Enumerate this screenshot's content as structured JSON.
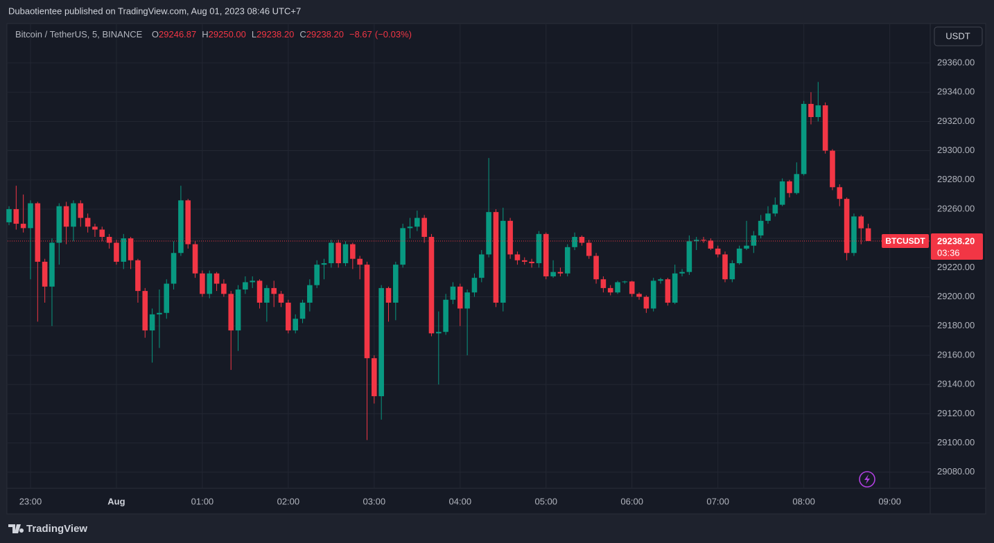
{
  "header": "Dubaotientee published on TradingView.com, Aug 01, 2023 08:46 UTC+7",
  "footer": "TradingView",
  "chart_data": {
    "type": "candlestick",
    "title": "Bitcoin / TetherUS, 5, BINANCE",
    "legend": [
      {
        "key": "O",
        "value": 29246.87,
        "label": "29246.87"
      },
      {
        "key": "H",
        "value": 29250,
        "label": "29250.00"
      },
      {
        "key": "L",
        "value": 29238.2,
        "label": "29238.20"
      },
      {
        "key": "C",
        "value": 29238.2,
        "label": "29238.20"
      }
    ],
    "change": {
      "value": -8.67,
      "label": "−8.67"
    },
    "change_percent": {
      "value": -0.03,
      "label": "(−0.03%)"
    },
    "currency": "USDT",
    "symbol": "BTCUSDT",
    "last_price": {
      "value": 29238.2,
      "label": "29238.20"
    },
    "countdown": "03:36",
    "up_color": "#089981",
    "down_color": "#f23645",
    "grid": true,
    "categories": [
      null,
      null,
      null,
      "23:00",
      null,
      null,
      null,
      null,
      null,
      null,
      null,
      null,
      null,
      null,
      null,
      "Aug",
      null,
      null,
      null,
      null,
      null,
      null,
      null,
      null,
      null,
      null,
      null,
      "01:00",
      null,
      null,
      null,
      null,
      null,
      null,
      null,
      null,
      null,
      null,
      null,
      "02:00",
      null,
      null,
      null,
      null,
      null,
      null,
      null,
      null,
      null,
      null,
      null,
      "03:00",
      null,
      null,
      null,
      null,
      null,
      null,
      null,
      null,
      null,
      null,
      null,
      "04:00",
      null,
      null,
      null,
      null,
      null,
      null,
      null,
      null,
      null,
      null,
      null,
      "05:00",
      null,
      null,
      null,
      null,
      null,
      null,
      null,
      null,
      null,
      null,
      null,
      "06:00",
      null,
      null,
      null,
      null,
      null,
      null,
      null,
      null,
      null,
      null,
      null,
      "07:00",
      null,
      null,
      null,
      null,
      null,
      null,
      null,
      null,
      null,
      null,
      null,
      "08:00",
      null,
      null,
      null,
      null,
      null,
      null,
      null,
      null,
      null,
      null,
      null,
      "09:00"
    ],
    "open": [
      29251,
      29260,
      29250,
      29247,
      29264,
      29224,
      29207,
      29237,
      29262,
      29248,
      29264,
      29254,
      29248,
      29246,
      29241,
      29237,
      29224,
      29240,
      29225,
      29204,
      29177,
      29188,
      29189,
      29209,
      29230,
      29266,
      29236,
      29216,
      29202,
      29216,
      29209,
      29202,
      29177,
      29205,
      29210,
      29211,
      29196,
      29206,
      29202,
      29196,
      29177,
      29185,
      29196,
      29208,
      29222,
      29223,
      29237,
      29223,
      29236,
      29226,
      29222,
      29158,
      29132,
      29206,
      29196,
      29222,
      29247,
      29248,
      29254,
      29241,
      29175,
      29176,
      29198,
      29207,
      29192,
      29203,
      29213,
      29229,
      29258,
      29196,
      29252,
      29229,
      29225,
      29224,
      29223,
      29243,
      29214,
      29217,
      29216,
      29234,
      29241,
      29237,
      29228,
      29212,
      29206,
      29203,
      29210,
      29210.5,
      29202,
      29200,
      29192,
      29211,
      29212,
      29196,
      29216,
      29217,
      29238,
      29239,
      29238.5,
      29233,
      29229,
      29212,
      29223,
      29233,
      29235,
      29242,
      29252,
      29257,
      29263,
      29279,
      29271,
      29284,
      29332,
      29323,
      29331,
      29300,
      29275,
      29267,
      29230,
      29255,
      29246.87,
      null,
      null,
      null
    ],
    "high": [
      29262,
      29276,
      29270,
      29266,
      29265,
      29226,
      29240,
      29264,
      29265,
      29266,
      29266,
      29257,
      29250,
      29248,
      29243,
      29239,
      29243,
      29241,
      29226,
      29206,
      29192,
      29205,
      29212,
      29238,
      29276,
      29267,
      29238,
      29218,
      29218,
      29217,
      29212,
      29204,
      29208,
      29214,
      29214,
      29212,
      29208,
      29211,
      29204,
      29198,
      29188,
      29198,
      29212,
      29225,
      29226,
      29239,
      29239,
      29238,
      29237,
      29228,
      29224,
      29160,
      29208,
      29207,
      29224,
      29250,
      29254,
      29259,
      29256,
      29243,
      29190,
      29202,
      29210,
      29209,
      29205,
      29216,
      29232,
      29295,
      29260,
      29261,
      29254,
      29231,
      29227,
      29226,
      29245,
      29244,
      29225,
      29220,
      29236,
      29244,
      29242,
      29239,
      29230,
      29214,
      29208,
      29211,
      29211,
      29211,
      29203,
      29201,
      29213,
      29213,
      29213,
      29222,
      29219,
      29242,
      29241,
      29241,
      29240,
      29235,
      29231,
      29225,
      29235,
      29252,
      29245,
      29256,
      29262,
      29268,
      29281,
      29280,
      29292,
      29334,
      29340,
      29347,
      29333,
      29301,
      29277,
      29268,
      29257,
      29256,
      29250,
      null,
      null,
      null
    ],
    "low": [
      29249,
      29246,
      29244,
      29212,
      29183,
      29196,
      29180,
      29222,
      29236,
      29238,
      29248,
      29244,
      29241,
      29238,
      29233,
      29222,
      29219,
      29219,
      29196,
      29172,
      29155,
      29165,
      29185,
      29205,
      29228,
      29233,
      29213,
      29200,
      29199,
      29204,
      29200,
      29150,
      29163,
      29202,
      29206,
      29192,
      29183,
      29193,
      29193,
      29175,
      29175,
      29182,
      29190,
      29206,
      29212,
      29220,
      29220,
      29221,
      29219,
      29212,
      29102,
      29127,
      29116,
      29183,
      29184,
      29220,
      29240,
      29245,
      29237,
      29173,
      29140,
      29174,
      29195,
      29180,
      29160,
      29200,
      29210,
      29227,
      29193,
      29190,
      29226,
      29222,
      29222,
      29220,
      29220,
      29212,
      29213,
      29214,
      29214,
      29232,
      29235,
      29226,
      29209,
      29203,
      29201,
      29202,
      29209,
      29200,
      29198,
      29189,
      29190,
      29209,
      29194,
      29195,
      29214,
      29215,
      29232,
      29237,
      29232,
      29227,
      29210,
      29210,
      29222,
      29232,
      29230,
      29240,
      29250,
      29255,
      29262,
      29268,
      29270,
      29283,
      29318,
      29320,
      29298,
      29273,
      29262,
      29225,
      29228,
      29236,
      29238.2,
      null,
      null,
      null
    ],
    "close": [
      29260,
      29250,
      29247,
      29264,
      29224,
      29207,
      29237,
      29262,
      29248,
      29264,
      29254,
      29248,
      29246,
      29241,
      29237,
      29224,
      29240,
      29225,
      29204,
      29177,
      29188,
      29189,
      29209,
      29230,
      29266,
      29236,
      29216,
      29202,
      29216,
      29209,
      29202,
      29177,
      29205,
      29210,
      29211,
      29196,
      29206,
      29202,
      29196,
      29177,
      29185,
      29196,
      29208,
      29222,
      29223,
      29237,
      29223,
      29236,
      29226,
      29222,
      29158,
      29132,
      29206,
      29196,
      29222,
      29247,
      29248,
      29254,
      29241,
      29175,
      29176,
      29198,
      29207,
      29192,
      29203,
      29213,
      29229,
      29258,
      29196,
      29252,
      29229,
      29225,
      29224,
      29223,
      29243,
      29214,
      29217,
      29216,
      29234,
      29241,
      29237,
      29228,
      29212,
      29206,
      29203,
      29210,
      29210.5,
      29202,
      29200,
      29192,
      29211,
      29212,
      29196,
      29216,
      29217,
      29238,
      29239,
      29238.5,
      29233,
      29229,
      29212,
      29223,
      29233,
      29235,
      29242,
      29252,
      29257,
      29263,
      29279,
      29271,
      29284,
      29332,
      29323,
      29331,
      29300,
      29275,
      29267,
      29230,
      29255,
      29246.87,
      29238.2,
      null,
      null,
      null
    ],
    "ylim": [
      29069,
      29386.5
    ],
    "yticks": [
      {
        "value": 29080,
        "label": "29080.00"
      },
      {
        "value": 29100,
        "label": "29100.00"
      },
      {
        "value": 29120,
        "label": "29120.00"
      },
      {
        "value": 29140,
        "label": "29140.00"
      },
      {
        "value": 29160,
        "label": "29160.00"
      },
      {
        "value": 29180,
        "label": "29180.00"
      },
      {
        "value": 29200,
        "label": "29200.00"
      },
      {
        "value": 29220,
        "label": "29220.00"
      },
      {
        "value": 29240,
        "label": "29240.00"
      },
      {
        "value": 29260,
        "label": "29260.00"
      },
      {
        "value": 29280,
        "label": "29280.00"
      },
      {
        "value": 29300,
        "label": "29300.00"
      },
      {
        "value": 29320,
        "label": "29320.00"
      },
      {
        "value": 29340,
        "label": "29340.00"
      },
      {
        "value": 29360,
        "label": "29360.00"
      }
    ]
  }
}
